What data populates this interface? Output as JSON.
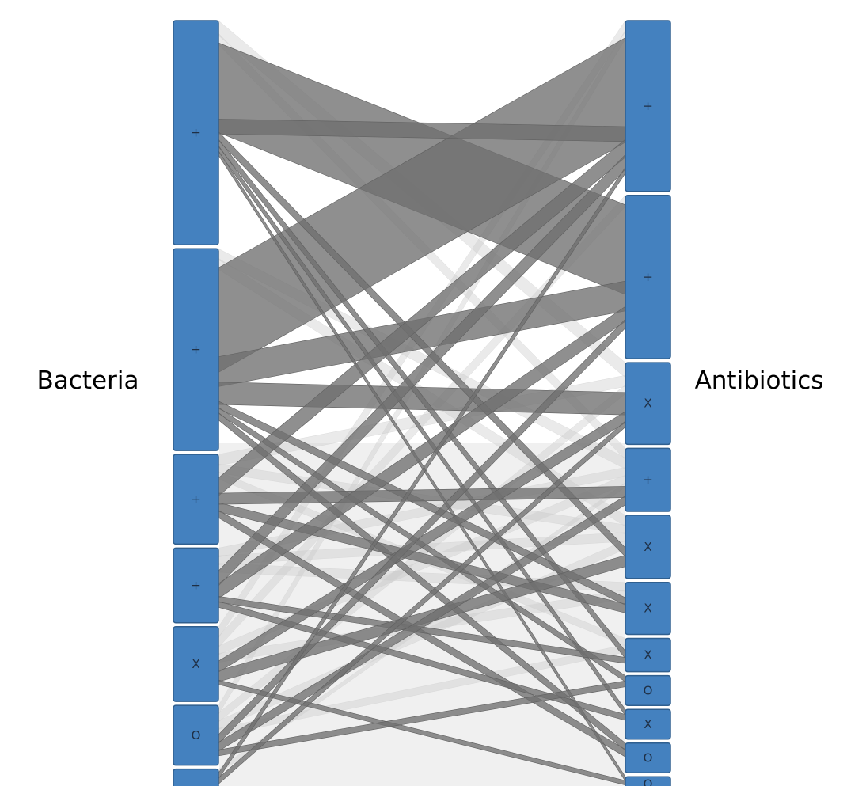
{
  "left_axis": {
    "label": "Bacteria"
  },
  "right_axis": {
    "label": "Antibiotics"
  },
  "left_nodes": [
    {
      "symbol": "+",
      "weight": 30
    },
    {
      "symbol": "+",
      "weight": 27
    },
    {
      "symbol": "+",
      "weight": 12
    },
    {
      "symbol": "+",
      "weight": 10
    },
    {
      "symbol": "X",
      "weight": 10
    },
    {
      "symbol": "O",
      "weight": 8
    },
    {
      "symbol": "",
      "weight": 3
    }
  ],
  "right_nodes": [
    {
      "symbol": "+",
      "weight": 23
    },
    {
      "symbol": "+",
      "weight": 22
    },
    {
      "symbol": "X",
      "weight": 11
    },
    {
      "symbol": "+",
      "weight": 8.5
    },
    {
      "symbol": "X",
      "weight": 8.5
    },
    {
      "symbol": "X",
      "weight": 7
    },
    {
      "symbol": "X",
      "weight": 4.5
    },
    {
      "symbol": "O",
      "weight": 4
    },
    {
      "symbol": "X",
      "weight": 4
    },
    {
      "symbol": "O",
      "weight": 4
    },
    {
      "symbol": "O",
      "weight": 2
    }
  ],
  "links": [
    {
      "source": 0,
      "target": 1,
      "value": 12,
      "strength": "strong"
    },
    {
      "source": 1,
      "target": 0,
      "value": 14,
      "strength": "strong"
    },
    {
      "source": 0,
      "target": 0,
      "value": 2,
      "strength": "strong"
    },
    {
      "source": 1,
      "target": 1,
      "value": 4,
      "strength": "strong"
    },
    {
      "source": 1,
      "target": 2,
      "value": 3,
      "strength": "strong"
    },
    {
      "source": 0,
      "target": 4,
      "value": 1.2,
      "strength": "strong"
    },
    {
      "source": 0,
      "target": 6,
      "value": 1,
      "strength": "strong"
    },
    {
      "source": 0,
      "target": 8,
      "value": 0.8,
      "strength": "strong"
    },
    {
      "source": 0,
      "target": 10,
      "value": 0.6,
      "strength": "strong"
    },
    {
      "source": 1,
      "target": 5,
      "value": 1,
      "strength": "strong"
    },
    {
      "source": 1,
      "target": 7,
      "value": 0.8,
      "strength": "strong"
    },
    {
      "source": 1,
      "target": 9,
      "value": 1,
      "strength": "strong"
    },
    {
      "source": 2,
      "target": 0,
      "value": 2.4,
      "strength": "strong"
    },
    {
      "source": 2,
      "target": 3,
      "value": 1.5,
      "strength": "strong"
    },
    {
      "source": 2,
      "target": 5,
      "value": 1.2,
      "strength": "strong"
    },
    {
      "source": 2,
      "target": 9,
      "value": 1,
      "strength": "strong"
    },
    {
      "source": 3,
      "target": 0,
      "value": 2,
      "strength": "strong"
    },
    {
      "source": 3,
      "target": 1,
      "value": 2,
      "strength": "strong"
    },
    {
      "source": 3,
      "target": 6,
      "value": 0.8,
      "strength": "strong"
    },
    {
      "source": 3,
      "target": 8,
      "value": 0.8,
      "strength": "strong"
    },
    {
      "source": 4,
      "target": 2,
      "value": 1.5,
      "strength": "strong"
    },
    {
      "source": 4,
      "target": 4,
      "value": 1.5,
      "strength": "strong"
    },
    {
      "source": 4,
      "target": 10,
      "value": 0.6,
      "strength": "strong"
    },
    {
      "source": 5,
      "target": 1,
      "value": 1.2,
      "strength": "strong"
    },
    {
      "source": 5,
      "target": 3,
      "value": 1.2,
      "strength": "strong"
    },
    {
      "source": 5,
      "target": 7,
      "value": 0.8,
      "strength": "strong"
    },
    {
      "source": 6,
      "target": 0,
      "value": 0.8,
      "strength": "strong"
    },
    {
      "source": 6,
      "target": 2,
      "value": 0.8,
      "strength": "strong"
    },
    {
      "source": 0,
      "target": 2,
      "value": 2,
      "strength": "faint"
    },
    {
      "source": 0,
      "target": 3,
      "value": 1.5,
      "strength": "faint"
    },
    {
      "source": 1,
      "target": 3,
      "value": 1.5,
      "strength": "faint"
    },
    {
      "source": 1,
      "target": 4,
      "value": 1.5,
      "strength": "faint"
    },
    {
      "source": 2,
      "target": 2,
      "value": 1.5,
      "strength": "faint"
    },
    {
      "source": 2,
      "target": 4,
      "value": 1.2,
      "strength": "faint"
    },
    {
      "source": 2,
      "target": 6,
      "value": 1,
      "strength": "faint"
    },
    {
      "source": 3,
      "target": 3,
      "value": 1.2,
      "strength": "faint"
    },
    {
      "source": 3,
      "target": 4,
      "value": 1.2,
      "strength": "faint"
    },
    {
      "source": 3,
      "target": 5,
      "value": 1.2,
      "strength": "faint"
    },
    {
      "source": 4,
      "target": 0,
      "value": 1.5,
      "strength": "faint"
    },
    {
      "source": 4,
      "target": 1,
      "value": 1.5,
      "strength": "faint"
    },
    {
      "source": 4,
      "target": 3,
      "value": 1.2,
      "strength": "faint"
    },
    {
      "source": 4,
      "target": 5,
      "value": 1.2,
      "strength": "faint"
    },
    {
      "source": 5,
      "target": 0,
      "value": 1.2,
      "strength": "faint"
    },
    {
      "source": 5,
      "target": 2,
      "value": 1.2,
      "strength": "faint"
    },
    {
      "source": 5,
      "target": 4,
      "value": 1.2,
      "strength": "faint"
    },
    {
      "source": 5,
      "target": 6,
      "value": 1,
      "strength": "faint"
    },
    {
      "source": 6,
      "target": 3,
      "value": 0.6,
      "strength": "faint"
    }
  ],
  "colors": {
    "node_fill": "#4481bf",
    "node_stroke": "#2f5f8f",
    "link_strong": "#6f6f6f",
    "link_faint": "#c9c9c9",
    "background": "#ffffff"
  }
}
